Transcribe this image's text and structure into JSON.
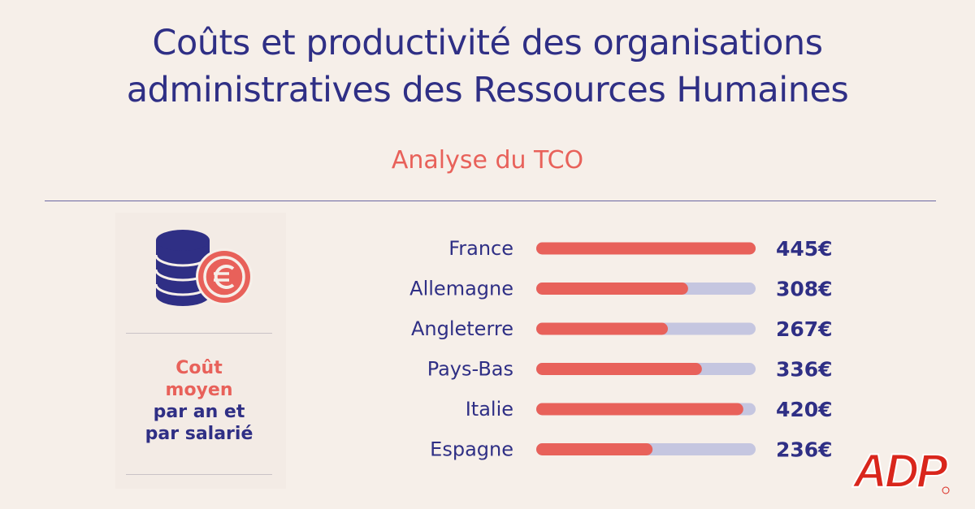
{
  "header": {
    "title_line1": "Coûts et productivité des organisations",
    "title_line2": "administratives des Ressources Humaines",
    "subtitle": "Analyse du TCO"
  },
  "side_panel": {
    "icon": "euro-coins-icon",
    "label_line1": "Coût",
    "label_line2": "moyen",
    "label_line3": "par an et",
    "label_line4": "par salarié"
  },
  "logo": {
    "text": "ADP",
    "icon": "adp-logo"
  },
  "colors": {
    "navy": "#2f2f85",
    "coral": "#e8615a",
    "track": "#c5c6e0",
    "background": "#f6efe9"
  },
  "chart_data": {
    "type": "bar",
    "orientation": "horizontal",
    "categories": [
      "France",
      "Allemagne",
      "Angleterre",
      "Pays-Bas",
      "Italie",
      "Espagne"
    ],
    "values": [
      445,
      308,
      267,
      336,
      420,
      236
    ],
    "value_labels": [
      "445€",
      "308€",
      "267€",
      "336€",
      "420€",
      "236€"
    ],
    "unit": "€",
    "xlim": [
      0,
      445
    ],
    "grid": false,
    "legend": "none"
  }
}
